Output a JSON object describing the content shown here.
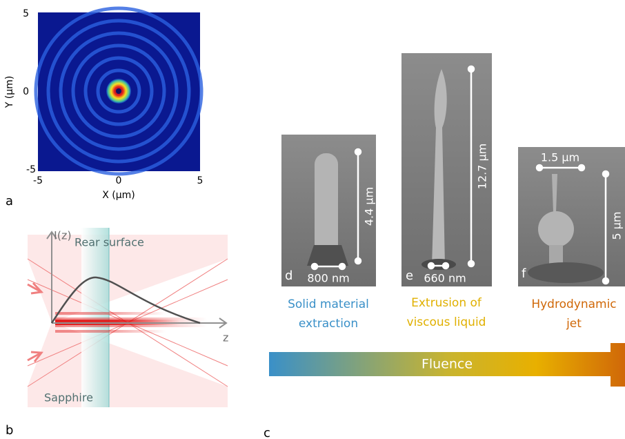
{
  "panel_a": {
    "letter": "a",
    "y_ticks": [
      "5",
      "0",
      "-5"
    ],
    "x_ticks": [
      "-5",
      "0",
      "5"
    ],
    "y_label": "Y (µm)",
    "x_label": "X (µm)"
  },
  "panel_b": {
    "letter": "b",
    "intensity_label": "I(z)",
    "rear_surface": "Rear surface",
    "z_label": "z",
    "material": "Sapphire"
  },
  "panel_c": {
    "letter": "c",
    "images": [
      {
        "letter": "d",
        "width_bar": "800 nm",
        "height_bar": "4.4 µm",
        "caption": [
          "Solid material",
          "extraction"
        ]
      },
      {
        "letter": "e",
        "width_bar": "660 nm",
        "height_bar": "12.7 µm",
        "caption": [
          "Extrusion of",
          "viscous liquid"
        ]
      },
      {
        "letter": "f",
        "width_bar": "1.5 µm",
        "height_bar": "5 µm",
        "caption": [
          "Hydrodynamic",
          "jet"
        ]
      }
    ],
    "arrow_label": "Fluence"
  }
}
